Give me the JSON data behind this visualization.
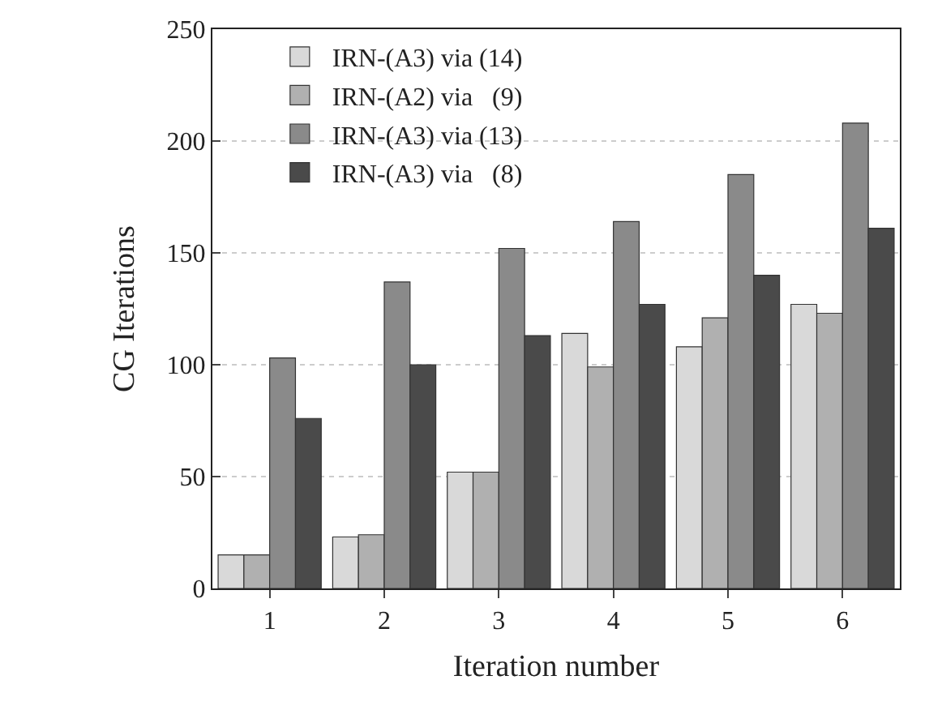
{
  "chart_data": {
    "type": "bar",
    "xlabel": "Iteration number",
    "ylabel": "CG Iterations",
    "categories": [
      "1",
      "2",
      "3",
      "4",
      "5",
      "6"
    ],
    "series": [
      {
        "name": "IRN-(A3) via (14)",
        "color": "#d9d9d9",
        "values": [
          15,
          23,
          52,
          114,
          108,
          127
        ]
      },
      {
        "name": "IRN-(A2) via   (9)",
        "color": "#b0b0b0",
        "values": [
          15,
          24,
          52,
          99,
          121,
          123
        ]
      },
      {
        "name": "IRN-(A3) via (13)",
        "color": "#8a8a8a",
        "values": [
          103,
          137,
          152,
          164,
          185,
          208
        ]
      },
      {
        "name": "IRN-(A3) via   (8)",
        "color": "#4a4a4a",
        "values": [
          76,
          100,
          113,
          127,
          140,
          161
        ]
      }
    ],
    "ylim": [
      0,
      250
    ],
    "yticks": [
      0,
      50,
      100,
      150,
      200,
      250
    ],
    "grid": "y",
    "legend": "top left"
  }
}
